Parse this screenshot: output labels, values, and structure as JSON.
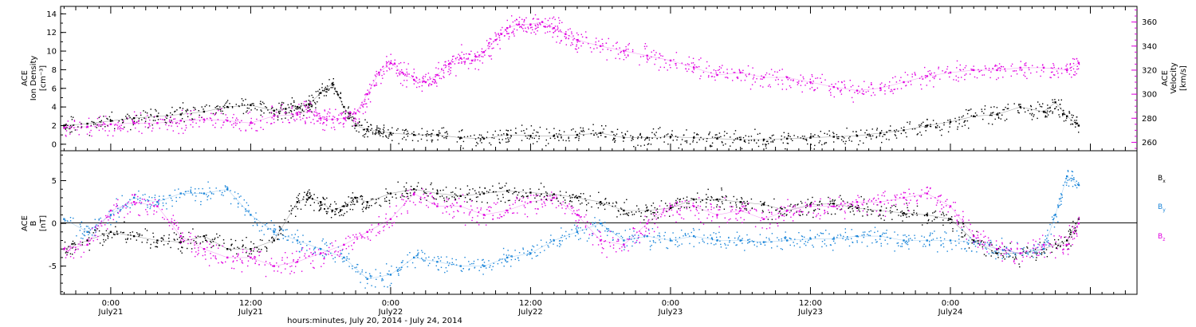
{
  "colors": {
    "black": "#000000",
    "magenta": "#e000e0",
    "blue": "#1a85d9"
  },
  "chart_data": [
    {
      "type": "scatter",
      "panel": "top",
      "ylabel_left": [
        "ACE",
        "Ion Density",
        "[cm⁻³]"
      ],
      "ylabel_right": [
        "ACE",
        "Velocity",
        "[km/s]"
      ],
      "ylim_left": [
        -0.7,
        14.8
      ],
      "yticks_left": [
        0,
        2,
        4,
        6,
        8,
        10,
        12,
        14
      ],
      "ylim_right": [
        253,
        373
      ],
      "yticks_right": [
        260,
        280,
        300,
        320,
        340,
        360
      ],
      "xlim": [
        -4.3,
        88
      ],
      "series": [
        {
          "key": "density",
          "axis": "left",
          "color": "#000000",
          "x": [
            -4,
            -2,
            0,
            2,
            4,
            6,
            8,
            10,
            12,
            14,
            15,
            16,
            17,
            18,
            19,
            20,
            21,
            22,
            23,
            24,
            26,
            28,
            30,
            32,
            34,
            36,
            38,
            40,
            42,
            44,
            46,
            48,
            50,
            52,
            54,
            56,
            58,
            60,
            62,
            64,
            66,
            68,
            70,
            72,
            74,
            76,
            78,
            80,
            81,
            82,
            83
          ],
          "y": [
            2.0,
            2.2,
            2.5,
            2.8,
            3.0,
            3.2,
            3.5,
            4.0,
            4.2,
            3.6,
            3.8,
            4.0,
            4.3,
            5.5,
            6.5,
            4.0,
            2.0,
            1.6,
            1.4,
            1.2,
            1.0,
            1.0,
            0.7,
            0.6,
            1.0,
            0.9,
            0.9,
            1.0,
            1.2,
            0.7,
            0.7,
            0.8,
            0.7,
            0.6,
            0.5,
            0.5,
            0.6,
            0.7,
            0.8,
            0.9,
            1.2,
            1.5,
            2.0,
            2.4,
            3.0,
            3.2,
            4.0,
            3.5,
            4.5,
            3.0,
            2.0
          ]
        },
        {
          "key": "velocity",
          "axis": "right",
          "color": "#e000e0",
          "x": [
            -4,
            -2,
            0,
            2,
            4,
            6,
            8,
            10,
            12,
            14,
            16,
            17,
            18,
            19,
            20,
            21,
            22,
            23,
            24,
            25,
            26,
            27,
            28,
            29,
            30,
            31,
            32,
            33,
            34,
            35,
            36,
            37,
            38,
            39,
            40,
            42,
            44,
            46,
            48,
            50,
            52,
            54,
            56,
            58,
            60,
            62,
            64,
            66,
            68,
            70,
            72,
            74,
            76,
            78,
            80,
            82,
            83
          ],
          "y": [
            272,
            273,
            275,
            276,
            276,
            278,
            279,
            278,
            276,
            282,
            283,
            286,
            280,
            279,
            280,
            284,
            300,
            318,
            326,
            318,
            312,
            310,
            316,
            325,
            330,
            328,
            335,
            345,
            355,
            358,
            358,
            360,
            355,
            350,
            345,
            340,
            336,
            332,
            328,
            322,
            316,
            318,
            314,
            314,
            310,
            306,
            303,
            305,
            310,
            315,
            318,
            320,
            320,
            322,
            322,
            320,
            326
          ]
        }
      ]
    },
    {
      "type": "scatter",
      "panel": "bottom",
      "ylabel_left": [
        "ACE",
        "B",
        "[nT]"
      ],
      "ylim": [
        -8.3,
        8.5
      ],
      "yticks": [
        -5,
        0,
        5
      ],
      "xlim": [
        -4.3,
        88
      ],
      "series": [
        {
          "key": "bx",
          "label": "B",
          "sub": "x",
          "color": "#000000",
          "x": [
            -4,
            -2,
            0,
            2,
            4,
            6,
            8,
            10,
            12,
            14,
            16,
            17,
            18,
            19,
            20,
            21,
            22,
            24,
            26,
            28,
            30,
            32,
            34,
            36,
            38,
            40,
            42,
            44,
            46,
            48,
            50,
            52,
            54,
            56,
            58,
            60,
            62,
            64,
            66,
            68,
            70,
            72,
            74,
            76,
            78,
            80,
            82,
            83
          ],
          "y": [
            -3.0,
            -2.0,
            -1.0,
            -1.5,
            -2.0,
            -2.2,
            -1.5,
            -3.0,
            -3.0,
            -2.0,
            2.5,
            3.0,
            2.5,
            1.5,
            2.0,
            3.0,
            2.5,
            3.5,
            4.0,
            3.5,
            3.2,
            3.5,
            3.8,
            3.6,
            3.4,
            3.0,
            2.5,
            1.5,
            1.5,
            1.8,
            2.8,
            2.8,
            2.5,
            2.2,
            1.5,
            2.2,
            2.3,
            1.8,
            1.5,
            1.2,
            1.0,
            0.5,
            -2.0,
            -3.5,
            -3.5,
            -3.0,
            -2.0,
            0.5
          ]
        },
        {
          "key": "by",
          "label": "B",
          "sub": "y",
          "color": "#1a85d9",
          "x": [
            -4,
            -2,
            0,
            2,
            4,
            6,
            8,
            10,
            12,
            14,
            16,
            18,
            20,
            22,
            24,
            26,
            28,
            30,
            32,
            34,
            36,
            38,
            40,
            42,
            44,
            46,
            48,
            50,
            52,
            54,
            56,
            58,
            60,
            62,
            64,
            66,
            68,
            70,
            72,
            74,
            76,
            78,
            80,
            81,
            82,
            83
          ],
          "y": [
            0.5,
            -1.0,
            1.0,
            3.0,
            2.5,
            3.5,
            3.5,
            4.0,
            1.0,
            -1.0,
            -2.0,
            -3.0,
            -4.0,
            -6.5,
            -6.0,
            -4.0,
            -4.5,
            -5.0,
            -5.0,
            -4.0,
            -3.5,
            -2.0,
            -1.0,
            0.0,
            -2.0,
            -1.5,
            -2.0,
            -1.5,
            -2.0,
            -2.0,
            -2.2,
            -2.0,
            -1.8,
            -1.8,
            -1.5,
            -1.5,
            -2.0,
            -2.0,
            -2.0,
            -2.2,
            -3.0,
            -3.5,
            -3.0,
            1.0,
            5.5,
            4.5
          ]
        },
        {
          "key": "bz",
          "label": "B",
          "sub": "z",
          "color": "#e000e0",
          "x": [
            -4,
            -2,
            0,
            2,
            4,
            6,
            8,
            10,
            12,
            14,
            16,
            18,
            20,
            22,
            24,
            26,
            28,
            30,
            32,
            34,
            36,
            38,
            40,
            42,
            44,
            46,
            48,
            50,
            52,
            54,
            56,
            58,
            60,
            62,
            64,
            66,
            68,
            70,
            72,
            74,
            76,
            78,
            80,
            82,
            83
          ],
          "y": [
            -3.0,
            -2.5,
            1.5,
            2.5,
            2.0,
            -1.5,
            -3.0,
            -4.0,
            -4.0,
            -5.0,
            -4.5,
            -3.5,
            -2.5,
            -1.0,
            0.5,
            3.5,
            2.0,
            2.0,
            1.0,
            1.5,
            2.5,
            3.0,
            1.0,
            -2.0,
            -2.5,
            0.0,
            2.0,
            2.0,
            1.0,
            1.5,
            0.5,
            1.5,
            2.0,
            2.0,
            2.5,
            2.5,
            3.0,
            3.5,
            2.0,
            -1.5,
            -3.0,
            -3.5,
            -2.5,
            -2.5,
            0.0
          ]
        }
      ]
    },
    {
      "type": "time-axis",
      "xlim": [
        -4.3,
        88
      ],
      "ticks": [
        {
          "t": 0,
          "time": "0:00",
          "date": "July21"
        },
        {
          "t": 12,
          "time": "12:00",
          "date": "July21"
        },
        {
          "t": 24,
          "time": "0:00",
          "date": "July22"
        },
        {
          "t": 36,
          "time": "12:00",
          "date": "July22"
        },
        {
          "t": 48,
          "time": "0:00",
          "date": "July23"
        },
        {
          "t": 60,
          "time": "12:00",
          "date": "July23"
        },
        {
          "t": 72,
          "time": "0:00",
          "date": "July24"
        }
      ],
      "xlabel": "hours:minutes, July 20, 2014 - July 24, 2014"
    }
  ]
}
